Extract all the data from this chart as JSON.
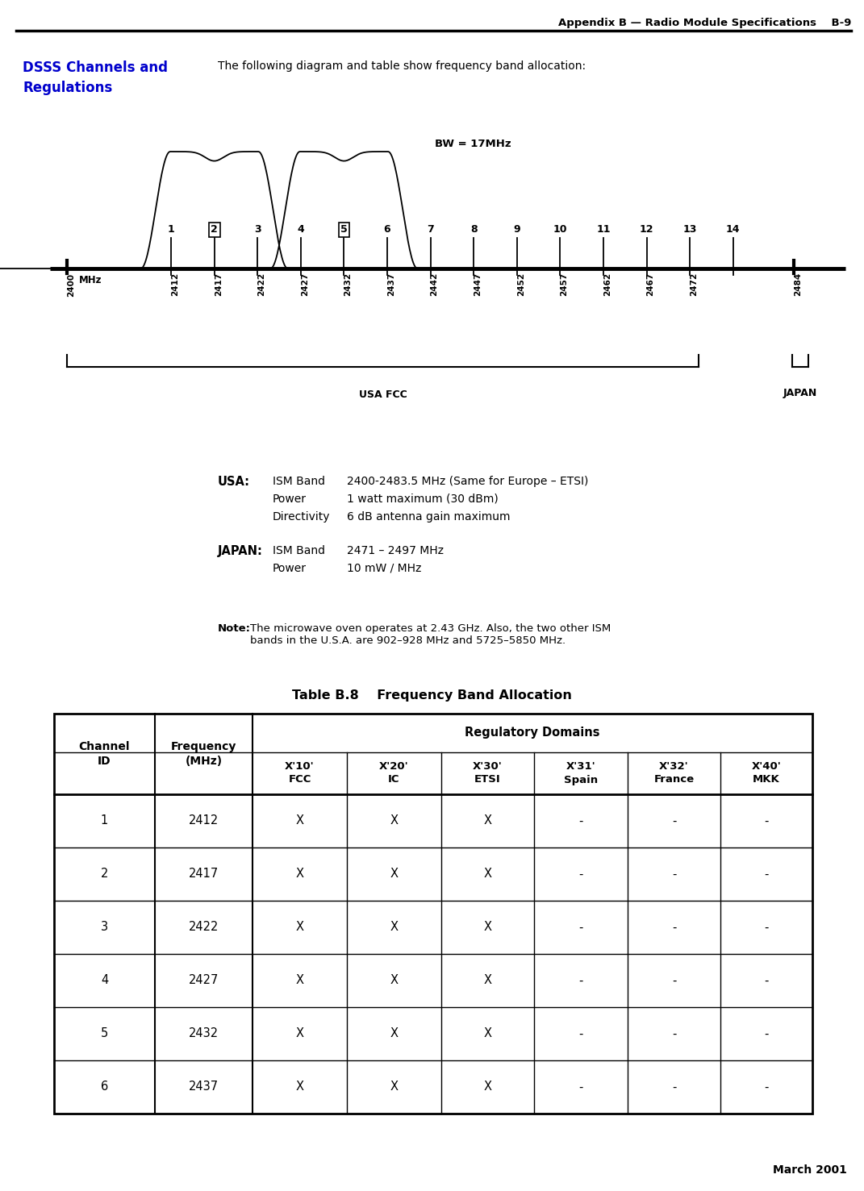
{
  "header_text": "Appendix B — Radio Module Specifications    B-9",
  "footer_text": "March 2001",
  "section_title": "DSSS Channels and\nRegulations",
  "section_title_color": "#0000CC",
  "intro_text": "The following diagram and table show frequency band allocation:",
  "bw_label": "BW = 17MHz",
  "boxed_channels": [
    2,
    5
  ],
  "freq_labels": [
    "2400",
    "2412",
    "2417",
    "2422",
    "2427",
    "2432",
    "2437",
    "2442",
    "2447",
    "2452",
    "2457",
    "2462",
    "2467",
    "2472",
    "2484"
  ],
  "freq_values": [
    2400,
    2412,
    2417,
    2422,
    2427,
    2432,
    2437,
    2442,
    2447,
    2452,
    2457,
    2462,
    2467,
    2472,
    2484
  ],
  "usa_label": "USA FCC",
  "japan_label": "JAPAN",
  "mhz_label": "MHz",
  "usa_info_label": "USA:",
  "usa_info": [
    [
      "ISM Band",
      "2400-2483.5 MHz (Same for Europe – ETSI)"
    ],
    [
      "Power",
      "1 watt maximum (30 dBm)"
    ],
    [
      "Directivity",
      "6 dB antenna gain maximum"
    ]
  ],
  "japan_info_label": "JAPAN:",
  "japan_info": [
    [
      "ISM Band",
      "2471 – 2497 MHz"
    ],
    [
      "Power",
      "10 mW / MHz"
    ]
  ],
  "note_bold": "Note:",
  "note_text": "The microwave oven operates at 2.43 GHz. Also, the two other ISM\nbands in the U.S.A. are 902–928 MHz and 5725–5850 MHz.",
  "table_title": "Table B.8    Frequency Band Allocation",
  "table_headers_row2": [
    "X'10'\nFCC",
    "X'20'\nIC",
    "X'30'\nETSI",
    "X'31'\nSpain",
    "X'32'\nFrance",
    "X'40'\nMKK"
  ],
  "table_data": [
    [
      1,
      2412,
      "X",
      "X",
      "X",
      "-",
      "-",
      "-"
    ],
    [
      2,
      2417,
      "X",
      "X",
      "X",
      "-",
      "-",
      "-"
    ],
    [
      3,
      2422,
      "X",
      "X",
      "X",
      "-",
      "-",
      "-"
    ],
    [
      4,
      2427,
      "X",
      "X",
      "X",
      "-",
      "-",
      "-"
    ],
    [
      5,
      2432,
      "X",
      "X",
      "X",
      "-",
      "-",
      "-"
    ],
    [
      6,
      2437,
      "X",
      "X",
      "X",
      "-",
      "-",
      "-"
    ]
  ],
  "bg_color": "#ffffff",
  "text_color": "#000000",
  "diag_curve_centers": [
    2417,
    2432
  ],
  "diag_f_min": 2398,
  "diag_f_max": 2490
}
